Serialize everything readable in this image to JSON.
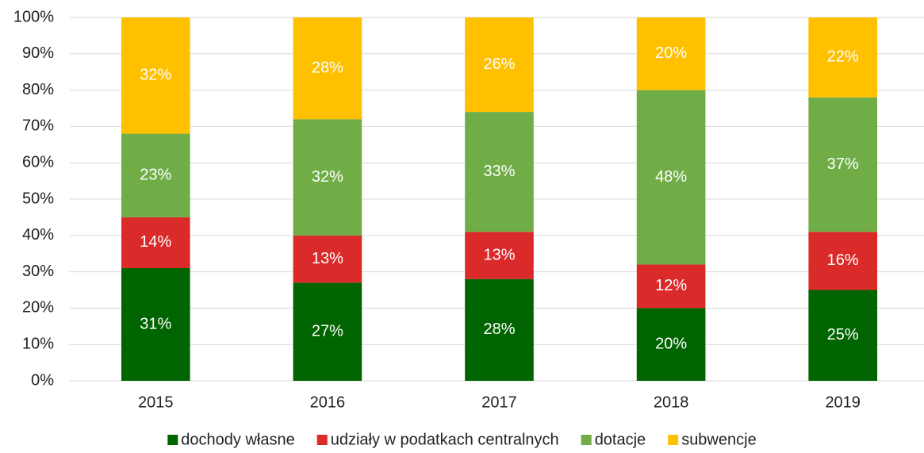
{
  "chart_data": {
    "type": "stacked_bar",
    "categories": [
      "2015",
      "2016",
      "2017",
      "2018",
      "2019"
    ],
    "series": [
      {
        "name": "dochody własne",
        "color": "#006400",
        "values": [
          31,
          27,
          28,
          20,
          25
        ],
        "value_labels": [
          "31%",
          "27%",
          "28%",
          "20%",
          "25%"
        ]
      },
      {
        "name": "udziały w podatkach centralnych",
        "color": "#db2a2a",
        "values": [
          14,
          13,
          13,
          12,
          16
        ],
        "value_labels": [
          "14%",
          "13%",
          "13%",
          "12%",
          "16%"
        ]
      },
      {
        "name": "dotacje",
        "color": "#70ad47",
        "values": [
          23,
          32,
          33,
          48,
          37
        ],
        "value_labels": [
          "23%",
          "32%",
          "33%",
          "48%",
          "37%"
        ]
      },
      {
        "name": "subwencje",
        "color": "#ffc000",
        "values": [
          32,
          28,
          26,
          20,
          22
        ],
        "value_labels": [
          "32%",
          "28%",
          "26%",
          "20%",
          "22%"
        ]
      }
    ],
    "ylim": [
      0,
      100
    ],
    "yticks": [
      {
        "value": 0,
        "label": "0%"
      },
      {
        "value": 10,
        "label": "10%"
      },
      {
        "value": 20,
        "label": "20%"
      },
      {
        "value": 30,
        "label": "30%"
      },
      {
        "value": 40,
        "label": "40%"
      },
      {
        "value": 50,
        "label": "50%"
      },
      {
        "value": 60,
        "label": "60%"
      },
      {
        "value": 70,
        "label": "70%"
      },
      {
        "value": 80,
        "label": "80%"
      },
      {
        "value": 90,
        "label": "90%"
      },
      {
        "value": 100,
        "label": "100%"
      }
    ],
    "grid": true,
    "legend": "bottom"
  }
}
